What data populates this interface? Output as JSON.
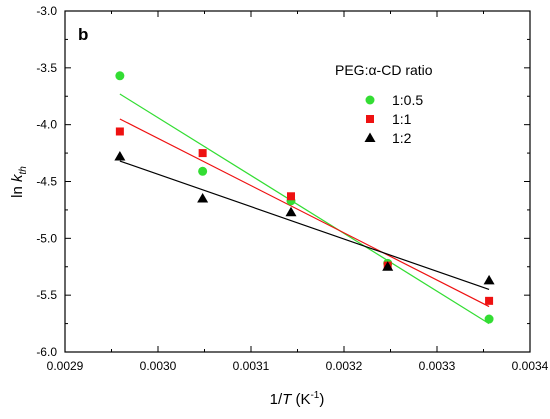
{
  "chart_data": {
    "type": "scatter",
    "panel_label": "b",
    "xlabel": {
      "prefix": "1/",
      "italic": "T",
      "suffix": " (K",
      "sup": "-1",
      "end": ")"
    },
    "ylabel": {
      "prefix": "ln ",
      "italic": "k",
      "sub": "th"
    },
    "xlim": [
      0.0029,
      0.0034
    ],
    "ylim": [
      -6.0,
      -3.0
    ],
    "x_ticks": [
      0.0029,
      0.003,
      0.0031,
      0.0032,
      0.0033,
      0.0034
    ],
    "x_tick_labels": [
      "0.0029",
      "0.0030",
      "0.0031",
      "0.0032",
      "0.0033",
      "0.0034"
    ],
    "y_ticks": [
      -6.0,
      -5.5,
      -5.0,
      -4.5,
      -4.0,
      -3.5,
      -3.0
    ],
    "y_tick_labels": [
      "-6.0",
      "-5.5",
      "-5.0",
      "-4.5",
      "-4.0",
      "-3.5",
      "-3.0"
    ],
    "grid": false,
    "legend": {
      "title": "PEG:α-CD ratio",
      "placement": "top-right"
    },
    "series": [
      {
        "name": "1:0.5",
        "marker": "circle",
        "color": "#33dd33",
        "x": [
          0.002959,
          0.003048,
          0.003143,
          0.003247,
          0.003356
        ],
        "y": [
          -3.57,
          -4.41,
          -4.67,
          -5.22,
          -5.71
        ],
        "fit": {
          "x": [
            0.002959,
            0.003356
          ],
          "y": [
            -3.73,
            -5.75
          ]
        }
      },
      {
        "name": "1:1",
        "marker": "square",
        "color": "#ee1111",
        "x": [
          0.002959,
          0.003048,
          0.003143,
          0.003247,
          0.003356
        ],
        "y": [
          -4.06,
          -4.25,
          -4.63,
          -5.24,
          -5.55
        ],
        "fit": {
          "x": [
            0.002959,
            0.003356
          ],
          "y": [
            -3.95,
            -5.6
          ]
        }
      },
      {
        "name": "1:2",
        "marker": "triangle",
        "color": "#000000",
        "x": [
          0.002959,
          0.003048,
          0.003143,
          0.003247,
          0.003356
        ],
        "y": [
          -4.28,
          -4.65,
          -4.77,
          -5.25,
          -5.37
        ],
        "fit": {
          "x": [
            0.002959,
            0.003356
          ],
          "y": [
            -4.32,
            -5.45
          ]
        }
      }
    ]
  }
}
